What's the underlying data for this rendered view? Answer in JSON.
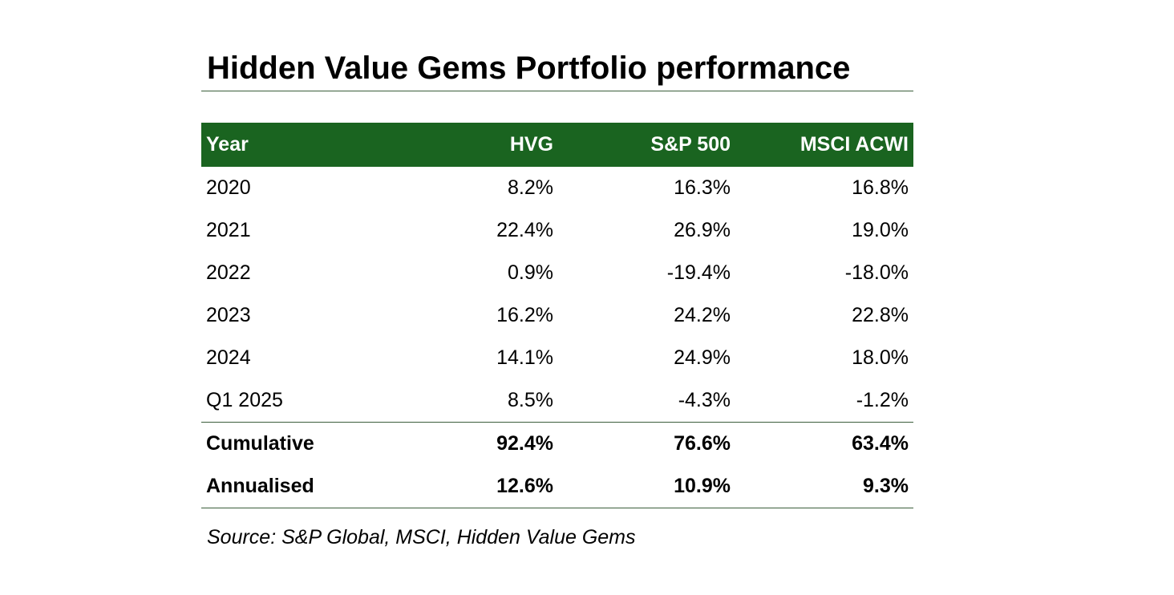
{
  "title": "Hidden Value Gems Portfolio performance",
  "chart_data": {
    "type": "table",
    "columns": [
      "Year",
      "HVG",
      "S&P 500",
      "MSCI ACWI"
    ],
    "rows": [
      {
        "label": "2020",
        "values": [
          "8.2%",
          "16.3%",
          "16.8%"
        ]
      },
      {
        "label": "2021",
        "values": [
          "22.4%",
          "26.9%",
          "19.0%"
        ]
      },
      {
        "label": "2022",
        "values": [
          "0.9%",
          "-19.4%",
          "-18.0%"
        ]
      },
      {
        "label": "2023",
        "values": [
          "16.2%",
          "24.2%",
          "22.8%"
        ]
      },
      {
        "label": "2024",
        "values": [
          "14.1%",
          "24.9%",
          "18.0%"
        ]
      },
      {
        "label": "Q1 2025",
        "values": [
          "8.5%",
          "-4.3%",
          "-1.2%"
        ]
      }
    ],
    "summary_rows": [
      {
        "label": "Cumulative",
        "values": [
          "92.4%",
          "76.6%",
          "63.4%"
        ]
      },
      {
        "label": "Annualised",
        "values": [
          "12.6%",
          "10.9%",
          "9.3%"
        ]
      }
    ],
    "colors": {
      "header_background": "#1a6420",
      "header_text": "#ffffff",
      "rule_lines": "#3b5e3b"
    }
  },
  "source": "Source: S&P Global, MSCI, Hidden Value Gems"
}
